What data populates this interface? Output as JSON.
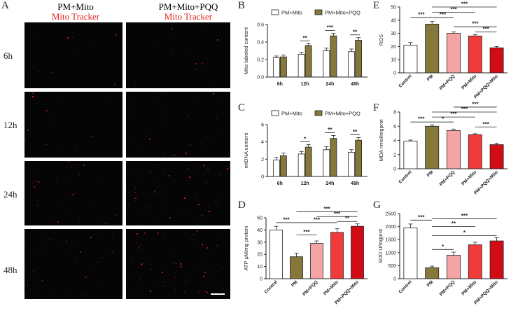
{
  "panel_letters": [
    "A",
    "B",
    "C",
    "D",
    "E",
    "F",
    "G"
  ],
  "microscopy": {
    "col_headers": [
      {
        "line1": "PM+Mito",
        "line2": "Mito Tracker"
      },
      {
        "line1": "PM+Mito+PQQ",
        "line2": "Mito Tracker"
      }
    ],
    "row_labels": [
      "6h",
      "12h",
      "24h",
      "48h"
    ],
    "dot_color": "#ff2050"
  },
  "colors": {
    "white_bar": "#ffffff",
    "olive": "#86773a",
    "pink": "#f4a4a4",
    "red_light": "#f23a3a",
    "red_dark": "#d20c15",
    "axis": "#222222"
  },
  "chart_data": [
    {
      "id": "B",
      "type": "bar",
      "categories": [
        "6h",
        "12h",
        "24h",
        "48h"
      ],
      "series": [
        {
          "name": "PM+Mito",
          "values": [
            0.22,
            0.26,
            0.3,
            0.29
          ],
          "errors": [
            0.02,
            0.02,
            0.03,
            0.03
          ]
        },
        {
          "name": "PM+Mito+PQQ",
          "values": [
            0.23,
            0.36,
            0.47,
            0.42
          ],
          "errors": [
            0.02,
            0.02,
            0.03,
            0.03
          ]
        }
      ],
      "ylabel": "Mito labeled content",
      "ylim": [
        0,
        0.6
      ],
      "yticks": [
        "0.0",
        "0.2",
        "0.4",
        "0.6"
      ],
      "legend": "top",
      "sig": [
        {
          "cat": 1,
          "text": "**"
        },
        {
          "cat": 2,
          "text": "***"
        },
        {
          "cat": 3,
          "text": "**"
        }
      ]
    },
    {
      "id": "C",
      "type": "bar",
      "categories": [
        "6h",
        "12h",
        "24h",
        "48h"
      ],
      "series": [
        {
          "name": "PM+Mito",
          "values": [
            1.9,
            2.6,
            3.1,
            2.8
          ],
          "errors": [
            0.3,
            0.3,
            0.35,
            0.3
          ]
        },
        {
          "name": "PM+Mito+PQQ",
          "values": [
            2.4,
            3.4,
            4.4,
            4.2
          ],
          "errors": [
            0.3,
            0.3,
            0.35,
            0.3
          ]
        }
      ],
      "ylabel": "mtDNA content",
      "ylim": [
        0,
        6
      ],
      "yticks": [
        "0",
        "2",
        "4",
        "6"
      ],
      "legend": "top",
      "sig": [
        {
          "cat": 1,
          "text": "*"
        },
        {
          "cat": 2,
          "text": "**"
        },
        {
          "cat": 3,
          "text": "**"
        }
      ]
    },
    {
      "id": "D",
      "type": "bar",
      "categories": [
        "Control",
        "PM",
        "PM+PQQ",
        "PM+Mito",
        "PM+PQQ+Mito"
      ],
      "values": [
        40,
        18,
        29,
        38,
        43
      ],
      "errors": [
        3,
        3,
        2,
        3,
        2
      ],
      "ylabel": "ATP μM/mg protein",
      "ylim": [
        0,
        50
      ],
      "yticks": [
        "0",
        "10",
        "20",
        "30",
        "40",
        "50"
      ],
      "sig": [
        {
          "a": 0,
          "b": 1,
          "text": "***",
          "y": 46
        },
        {
          "a": 1,
          "b": 2,
          "text": "***",
          "y": 36
        },
        {
          "a": 1,
          "b": 3,
          "text": "***",
          "y": 46
        },
        {
          "a": 1,
          "b": 4,
          "text": "***",
          "y": 55
        },
        {
          "a": 2,
          "b": 4,
          "text": "***",
          "y": 51
        },
        {
          "a": 3,
          "b": 4,
          "text": "**",
          "y": 47
        }
      ]
    },
    {
      "id": "E",
      "type": "bar",
      "categories": [
        "Control",
        "PM",
        "PM+PQQ",
        "PM+Mito",
        "PM+PQQ+Mito"
      ],
      "values": [
        21,
        37,
        30,
        28,
        19
      ],
      "errors": [
        2,
        2,
        1,
        1,
        1
      ],
      "ylabel": "ROS",
      "ylim": [
        0,
        50
      ],
      "yticks": [
        "0",
        "10",
        "20",
        "30",
        "40",
        "50"
      ],
      "sig": [
        {
          "a": 0,
          "b": 1,
          "text": "***",
          "y": 42
        },
        {
          "a": 1,
          "b": 2,
          "text": "***",
          "y": 42
        },
        {
          "a": 1,
          "b": 3,
          "text": "***",
          "y": 46
        },
        {
          "a": 1,
          "b": 4,
          "text": "***",
          "y": 50
        },
        {
          "a": 2,
          "b": 4,
          "text": "***",
          "y": 35
        },
        {
          "a": 3,
          "b": 4,
          "text": "***",
          "y": 31
        }
      ]
    },
    {
      "id": "F",
      "type": "bar",
      "categories": [
        "Control",
        "PM",
        "PM+PQQ",
        "PM+Mito",
        "PM+PQQ+Mito"
      ],
      "values": [
        3.9,
        6.0,
        5.4,
        4.8,
        3.4
      ],
      "errors": [
        0.15,
        0.2,
        0.2,
        0.15,
        0.2
      ],
      "ylabel": "MDA nmol/mgprot",
      "ylim": [
        0,
        8
      ],
      "yticks": [
        "0",
        "2",
        "4",
        "6",
        "8"
      ],
      "sig": [
        {
          "a": 0,
          "b": 1,
          "text": "***",
          "y": 6.6
        },
        {
          "a": 1,
          "b": 2,
          "text": "*",
          "y": 6.6
        },
        {
          "a": 1,
          "b": 3,
          "text": "***",
          "y": 7.3
        },
        {
          "a": 1,
          "b": 4,
          "text": "***",
          "y": 8.0
        },
        {
          "a": 2,
          "b": 4,
          "text": "***",
          "y": 8.7
        },
        {
          "a": 3,
          "b": 4,
          "text": "***",
          "y": 5.9
        }
      ]
    },
    {
      "id": "G",
      "type": "bar",
      "categories": [
        "Control",
        "PM",
        "PM+PQQ",
        "PM+Mito",
        "PM+PQQ+Mito"
      ],
      "values": [
        1950,
        420,
        900,
        1300,
        1450
      ],
      "errors": [
        150,
        60,
        120,
        100,
        120
      ],
      "ylabel": "SOD U/mgprot",
      "ylim": [
        0,
        2500
      ],
      "yticks": [
        "0",
        "500",
        "1000",
        "1500",
        "2000",
        "2500"
      ],
      "sig": [
        {
          "a": 0,
          "b": 1,
          "text": "***",
          "y": 2250
        },
        {
          "a": 1,
          "b": 2,
          "text": "*",
          "y": 1120
        },
        {
          "a": 1,
          "b": 4,
          "text": "*",
          "y": 1650
        },
        {
          "a": 1,
          "b": 3,
          "text": "**",
          "y": 2000
        },
        {
          "a": 1,
          "b": 4,
          "text": "***",
          "y": 2300
        }
      ]
    }
  ]
}
